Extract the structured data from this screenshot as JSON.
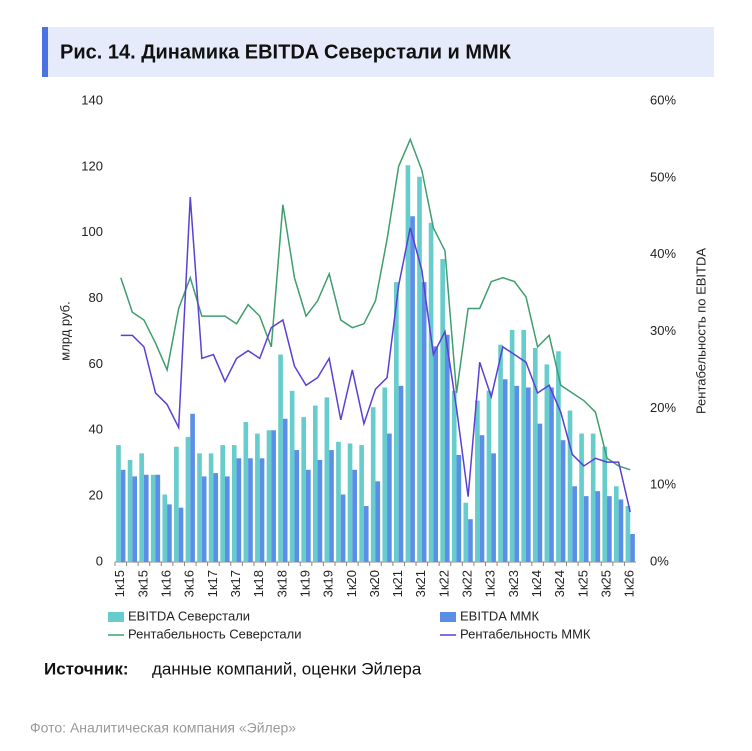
{
  "chart_data": {
    "type": "bar_line",
    "title": "Рис. 14. Динамика EBITDA Северстали и ММК",
    "y_label": "млрд руб.",
    "y2_label": "Рентабельность по EBITDA",
    "categories": [
      "1к15",
      null,
      "3к15",
      null,
      "1к16",
      null,
      "3к16",
      null,
      "1к17",
      null,
      "3к17",
      null,
      "1к18",
      null,
      "3к18",
      null,
      "1к19",
      null,
      "3к19",
      null,
      "1к20",
      null,
      "3к20",
      null,
      "1к21",
      null,
      "3к21",
      null,
      "1к22",
      null,
      "3к22",
      null,
      "1к23",
      null,
      "3к23",
      null,
      "1к24",
      null,
      "3к24",
      null,
      "1к25",
      null,
      "3к25",
      null,
      "1к26"
    ],
    "ylim": [
      0,
      140
    ],
    "yticks": [
      0,
      20,
      40,
      60,
      80,
      100,
      120,
      140
    ],
    "y2lim": [
      0,
      60
    ],
    "y2ticks": [
      {
        "value": 0,
        "label": "0%"
      },
      {
        "value": 10,
        "label": "10%"
      },
      {
        "value": 20,
        "label": "20%"
      },
      {
        "value": 30,
        "label": "30%"
      },
      {
        "value": 40,
        "label": "40%"
      },
      {
        "value": 50,
        "label": "50%"
      },
      {
        "value": 60,
        "label": "60%"
      }
    ],
    "series": [
      {
        "name": "EBITDA Северстали",
        "kind": "bar",
        "color": "#66cccc",
        "values": [
          35.5,
          31,
          33,
          26.5,
          20.5,
          35,
          38,
          33,
          33,
          35.5,
          35.5,
          42.5,
          39,
          40,
          63,
          52,
          44,
          47.5,
          50,
          36.5,
          36,
          35.5,
          47,
          53,
          85,
          120.5,
          117,
          103,
          92,
          52,
          18,
          49,
          52,
          66,
          70.5,
          70.5,
          65,
          60,
          64,
          46,
          39,
          39,
          35,
          23,
          17
        ]
      },
      {
        "name": "EBITDA ММК",
        "kind": "bar",
        "color": "#5b8ee6",
        "values": [
          28,
          26,
          26.5,
          26.5,
          17.5,
          16.5,
          45,
          26,
          27,
          26,
          31.5,
          31.5,
          31.5,
          40,
          43.5,
          34,
          28,
          31,
          34,
          20.5,
          28,
          17,
          24.5,
          39,
          53.5,
          105,
          85,
          65.5,
          69,
          32.5,
          13,
          38.5,
          33,
          55.5,
          53.5,
          53,
          42,
          53,
          37,
          23,
          20,
          21.5,
          20,
          19,
          8.5
        ]
      },
      {
        "name": "Рентабельность Северстали",
        "kind": "line",
        "axis": "y2",
        "color": "#3f9e6e",
        "values": [
          37,
          32.5,
          31.5,
          28.5,
          25,
          33,
          37,
          32,
          32,
          32,
          31,
          33.5,
          32,
          28,
          46.5,
          37,
          32,
          34,
          37.5,
          31.5,
          30.5,
          31,
          34,
          42,
          51.5,
          55,
          51,
          43.5,
          40.5,
          22,
          33,
          33,
          36.5,
          37,
          36.5,
          34.5,
          28,
          29.5,
          23,
          22,
          21,
          19.5,
          13.5,
          12.5,
          12
        ]
      },
      {
        "name": "Рентабельность ММК",
        "kind": "line",
        "axis": "y2",
        "color": "#5b3fd6",
        "values": [
          29.5,
          29.5,
          28,
          22,
          20.5,
          17.5,
          47.5,
          26.5,
          27,
          23.5,
          26.5,
          27.5,
          26.5,
          30.5,
          31.5,
          25.5,
          23,
          24,
          26.5,
          18.5,
          25,
          18,
          22.5,
          24,
          36,
          43.5,
          38,
          27,
          30,
          20,
          8.5,
          26,
          21.5,
          28,
          27,
          26,
          22,
          23,
          19.5,
          14,
          12.5,
          13.5,
          13,
          13,
          6.5
        ]
      }
    ]
  },
  "source_label": "Источник:",
  "source_text": "данные компаний, оценки Эйлера",
  "photo_caption": "Фото: Аналитическая компания «Эйлер»"
}
